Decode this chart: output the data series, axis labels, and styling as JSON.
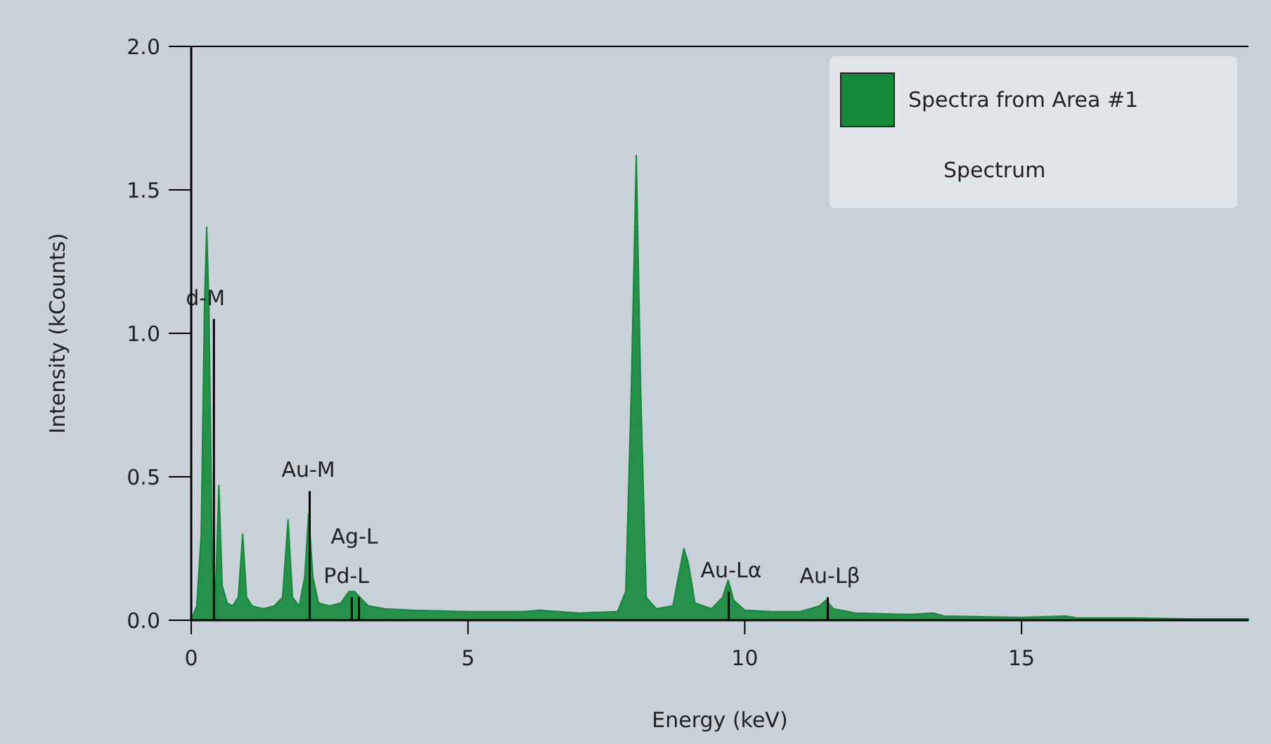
{
  "chart_data": {
    "type": "area",
    "xlabel": "Energy (keV)",
    "ylabel": "Intensity (kCounts)",
    "xlim": [
      0,
      19.1
    ],
    "ylim": [
      0,
      2.0
    ],
    "xticks": [
      0,
      5,
      10,
      15
    ],
    "yticks": [
      {
        "value": 0,
        "label": "0.0"
      },
      0.5,
      {
        "value": 1,
        "label": "1.0"
      },
      1.5,
      {
        "value": 2,
        "label": "2.0"
      }
    ],
    "grid": false,
    "legend": "top right",
    "legend_title": "Spectrum",
    "x": [
      0,
      0.1,
      0.18,
      0.24,
      0.28,
      0.32,
      0.38,
      0.44,
      0.5,
      0.56,
      0.65,
      0.75,
      0.85,
      0.93,
      1.0,
      1.1,
      1.3,
      1.5,
      1.65,
      1.75,
      1.83,
      1.95,
      2.05,
      2.12,
      2.2,
      2.3,
      2.5,
      2.7,
      2.85,
      2.95,
      3.05,
      3.2,
      3.5,
      4,
      5,
      6,
      6.3,
      7,
      7.7,
      7.85,
      7.95,
      8.04,
      8.12,
      8.22,
      8.4,
      8.7,
      8.8,
      8.9,
      8.98,
      9.1,
      9.4,
      9.6,
      9.7,
      9.8,
      10,
      10.5,
      11,
      11.35,
      11.47,
      11.6,
      12,
      13,
      13.4,
      13.6,
      15,
      15.8,
      16,
      17,
      18,
      19.1
    ],
    "series": [
      {
        "name": "Spectra from Area #1",
        "color": "#13893a",
        "values": [
          0,
          0.05,
          0.3,
          1.1,
          1.37,
          1.1,
          0.2,
          0.1,
          0.47,
          0.12,
          0.06,
          0.05,
          0.08,
          0.3,
          0.08,
          0.05,
          0.04,
          0.05,
          0.08,
          0.35,
          0.08,
          0.05,
          0.15,
          0.37,
          0.15,
          0.06,
          0.05,
          0.06,
          0.1,
          0.1,
          0.08,
          0.05,
          0.04,
          0.035,
          0.03,
          0.03,
          0.035,
          0.025,
          0.03,
          0.1,
          0.8,
          1.62,
          0.8,
          0.08,
          0.04,
          0.05,
          0.15,
          0.25,
          0.2,
          0.06,
          0.04,
          0.08,
          0.14,
          0.07,
          0.035,
          0.03,
          0.03,
          0.05,
          0.07,
          0.04,
          0.025,
          0.02,
          0.025,
          0.015,
          0.01,
          0.015,
          0.008,
          0.008,
          0.005,
          0.005
        ]
      },
      {
        "type": "bar",
        "color": "#000000",
        "x": [
          0.41,
          2.14,
          2.9,
          3.03,
          9.71,
          11.5
        ],
        "values": [
          1.05,
          0.45,
          0.08,
          0.08,
          0.1,
          0.08
        ]
      }
    ],
    "annotations": [
      {
        "text": "d-M",
        "x": 0.41,
        "y": 1.05
      },
      {
        "text": "Au-M",
        "x": 2.14,
        "y": 0.45
      },
      {
        "text": "Pd-L",
        "x": 2.9,
        "y": 0.08
      },
      {
        "text": "Ag-L",
        "x": 3.03,
        "y": 0.08
      },
      {
        "text": "Au-Lα",
        "x": 9.71,
        "y": 0.1
      },
      {
        "text": "Au-Lβ",
        "x": 11.5,
        "y": 0.08
      }
    ]
  }
}
